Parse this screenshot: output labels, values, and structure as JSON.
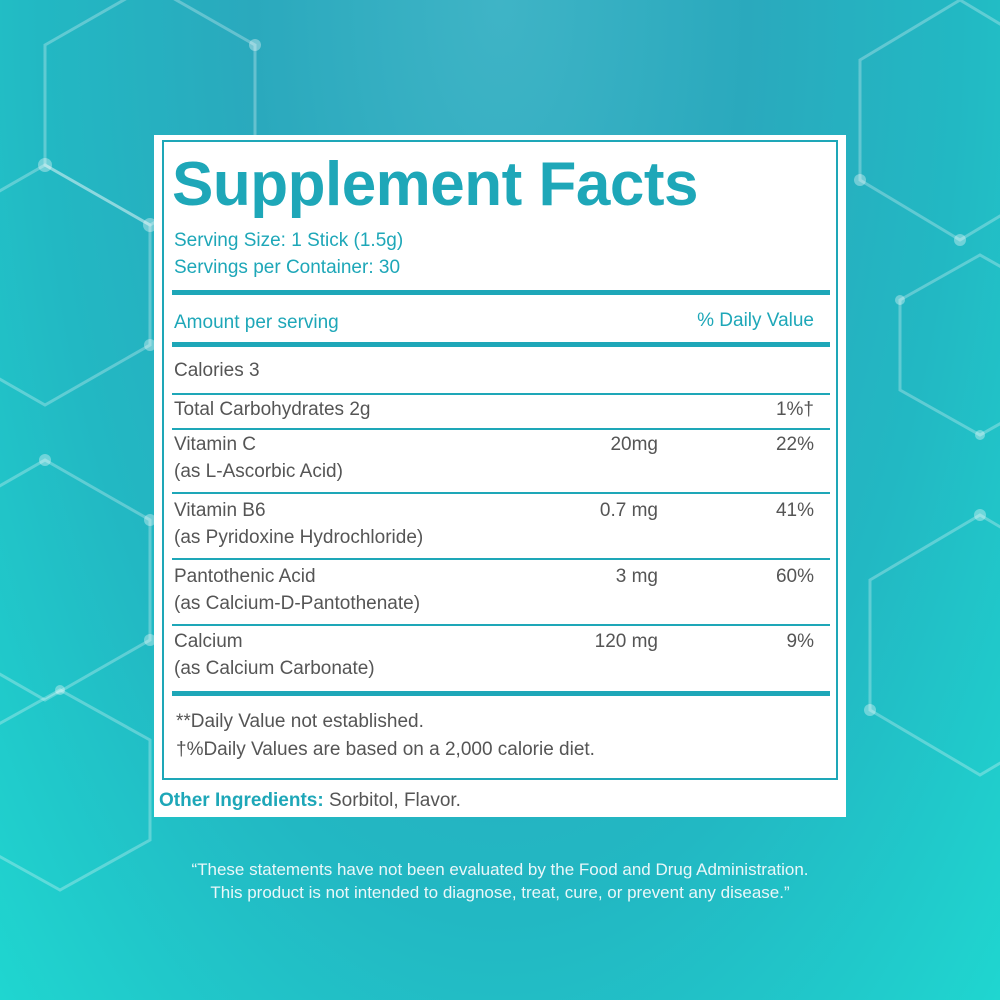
{
  "background": {
    "accent": "#1ea7b8",
    "bg_top": "#3fb4c6",
    "bg_bottom": "#1fd6d0",
    "decoration": "hexagon-molecule-pattern"
  },
  "label": {
    "title": "Supplement Facts",
    "serving_size": "Serving Size: 1 Stick (1.5g)",
    "servings_per_container": "Servings per Container: 30",
    "amount_header": "Amount per serving",
    "dv_header": "% Daily Value",
    "rows": [
      {
        "name": "Calories 3",
        "sub": "",
        "amount": "",
        "dv": ""
      },
      {
        "name": "Total Carbohydrates 2g",
        "sub": "",
        "amount": "",
        "dv": "1%†"
      },
      {
        "name": "Vitamin C",
        "sub": "(as L-Ascorbic Acid)",
        "amount": "20mg",
        "dv": "22%"
      },
      {
        "name": "Vitamin B6",
        "sub": "(as Pyridoxine Hydrochloride)",
        "amount": "0.7 mg",
        "dv": "41%"
      },
      {
        "name": "Pantothenic Acid",
        "sub": "(as Calcium-D-Pantothenate)",
        "amount": "3 mg",
        "dv": "60%"
      },
      {
        "name": "Calcium",
        "sub": "(as Calcium Carbonate)",
        "amount": "120 mg",
        "dv": "9%"
      }
    ],
    "footnote_1": "**Daily Value not established.",
    "footnote_2": "†%Daily Values are based on a 2,000 calorie diet.",
    "other_label": "Other Ingredients:",
    "other_value": " Sorbitol, Flavor."
  },
  "disclaimer": {
    "line1": "“These statements have not been evaluated by the Food and Drug Administration.",
    "line2": "This product is not intended to diagnose, treat, cure, or prevent any disease.”"
  }
}
